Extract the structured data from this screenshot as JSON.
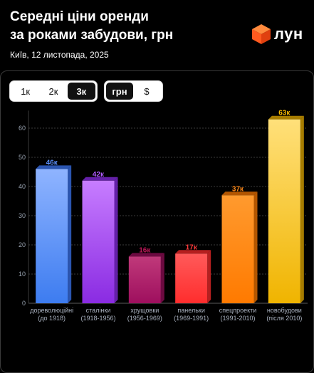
{
  "header": {
    "title_line1": "Середні ціни оренди",
    "title_line2": "за роками забудови, грн",
    "date": "Київ, 12 листопада, 2025",
    "brand": "лун"
  },
  "controls": {
    "rooms": [
      {
        "label": "1к",
        "active": false
      },
      {
        "label": "2к",
        "active": false
      },
      {
        "label": "3к",
        "active": true
      }
    ],
    "currency": [
      {
        "label": "грн",
        "active": true
      },
      {
        "label": "$",
        "active": false
      }
    ]
  },
  "colors": {
    "background": "#000000",
    "brand_orange": "#ff5a1f"
  },
  "chart_data": {
    "type": "bar",
    "title": "Середні ціни оренди за роками забудови, грн",
    "y_ticks": [
      0,
      10,
      20,
      30,
      40,
      50,
      60
    ],
    "ylim": [
      0,
      66
    ],
    "grid": true,
    "categories": [
      {
        "name": "дореволюційні",
        "period": "(до 1918)"
      },
      {
        "name": "сталінки",
        "period": "(1918-1956)"
      },
      {
        "name": "хрущовки",
        "period": "(1956-1969)"
      },
      {
        "name": "панельки",
        "period": "(1969-1991)"
      },
      {
        "name": "спецпроекти",
        "period": "(1991-2010)"
      },
      {
        "name": "новобудови",
        "period": "(після 2010)"
      }
    ],
    "values": [
      46,
      42,
      16,
      17,
      37,
      63
    ],
    "value_labels": [
      "46к",
      "42к",
      "16к",
      "17к",
      "37к",
      "63к"
    ],
    "bar_colors": [
      {
        "top": "#8fb4ff",
        "bottom": "#3d7cf0",
        "side": "#2b55b0",
        "label": "#5b8ff9"
      },
      {
        "top": "#c77dff",
        "bottom": "#8a2be2",
        "side": "#6420a8",
        "label": "#b05cff"
      },
      {
        "top": "#c0397a",
        "bottom": "#9e0f5e",
        "side": "#6d0a41",
        "label": "#c2185b"
      },
      {
        "top": "#ff5a5a",
        "bottom": "#ff2d2d",
        "side": "#b51f1f",
        "label": "#ff3b3b"
      },
      {
        "top": "#ff9a2e",
        "bottom": "#ff7a00",
        "side": "#b35600",
        "label": "#ff8a1a"
      },
      {
        "top": "#ffe07a",
        "bottom": "#f0b400",
        "side": "#a67c00",
        "label": "#f5b800"
      }
    ]
  }
}
